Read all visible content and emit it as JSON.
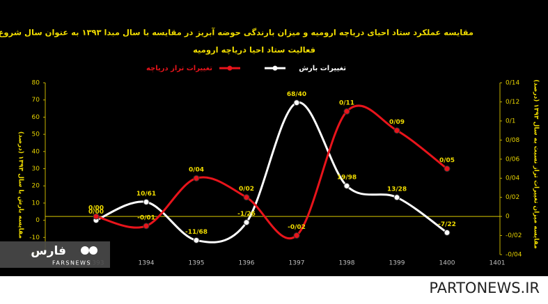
{
  "chart_data": {
    "type": "line",
    "title": "مقایسه عملکرد ستاد احیای دریاچه ارومیه و میزان بارندگی حوضه آبریز در مقایسه با سال مبدا ۱۳۹۳ به عنوان سال شروع",
    "subtitle": "فعالیت ستاد احیا دریاچه ارومیه",
    "y_label": "مقایسه بارش با سال ۱۳۹۳ (درصد)",
    "y2_label": "مقایسه میزان تغییرات تراز نسبت به سال ۱۳۹۳ (درصد)",
    "categories": [
      "1393",
      "1394",
      "1395",
      "1396",
      "1397",
      "1398",
      "1399",
      "1400",
      "1401"
    ],
    "series": [
      {
        "name": "تغییرات بارش",
        "color": "#ffffff",
        "values": [
          0,
          10.61,
          -11.68,
          -1.26,
          68.4,
          19.98,
          13.28,
          -7.22,
          null
        ],
        "value_labels": [
          "0/00",
          "10/61",
          "-11/68",
          "-1/26",
          "68/40",
          "19/98",
          "13/28",
          "-7/22",
          null
        ]
      },
      {
        "name": "تغییرات تراز دریاچه",
        "color": "#e8141b",
        "axis": "y2",
        "values": [
          0,
          -0.01,
          0.04,
          0.02,
          -0.02,
          0.11,
          0.09,
          0.05,
          null
        ],
        "value_labels": [
          "0/00",
          "-0/01",
          "0/04",
          "0/02",
          "-0/02",
          "0/11",
          "0/09",
          "0/05",
          null
        ]
      }
    ],
    "ylim": [
      -20,
      80
    ],
    "yticks": [
      -20,
      -10,
      0,
      10,
      20,
      30,
      40,
      50,
      60,
      70,
      80
    ],
    "y2lim": [
      -0.04,
      0.14
    ],
    "y2ticks": [
      {
        "value": -0.04,
        "label": "-0/04"
      },
      {
        "value": -0.02,
        "label": "-0/02"
      },
      0,
      {
        "value": 0.02,
        "label": "0/02"
      },
      {
        "value": 0.04,
        "label": "0/04"
      },
      {
        "value": 0.06,
        "label": "0/06"
      },
      {
        "value": 0.08,
        "label": "0/08"
      },
      {
        "value": 0.1,
        "label": "0/1"
      },
      {
        "value": 0.12,
        "label": "0/12"
      },
      {
        "value": 0.14,
        "label": "0/14"
      }
    ],
    "smooth": true
  },
  "watermark": {
    "logo": "فارس",
    "name": "FARSNEWS"
  },
  "site": "PARTONEWS.IR"
}
